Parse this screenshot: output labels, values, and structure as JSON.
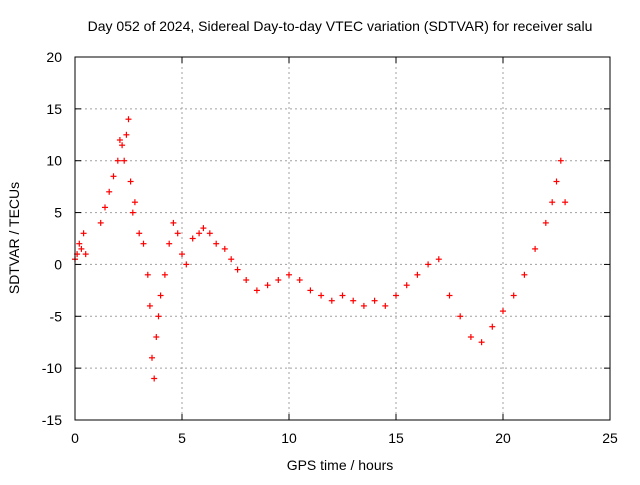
{
  "chart_data": {
    "type": "scatter",
    "title": "Day 052 of 2024, Sidereal Day-to-day VTEC variation (SDTVAR) for receiver salu",
    "xlabel": "GPS time / hours",
    "ylabel": "SDTVAR / TECUs",
    "xlim": [
      0,
      25
    ],
    "ylim": [
      -15,
      20
    ],
    "xticks": [
      0,
      5,
      10,
      15,
      20,
      25
    ],
    "yticks": [
      -15,
      -10,
      -5,
      0,
      5,
      10,
      15,
      20
    ],
    "grid": true,
    "marker": "+",
    "series_color": "#ff0000",
    "series": [
      {
        "name": "SDTVAR",
        "x": [
          0.0,
          0.1,
          0.2,
          0.3,
          0.4,
          0.5,
          1.2,
          1.4,
          1.6,
          1.8,
          2.0,
          2.1,
          2.2,
          2.3,
          2.4,
          2.5,
          2.6,
          2.7,
          2.8,
          3.0,
          3.2,
          3.4,
          3.5,
          3.6,
          3.7,
          3.8,
          3.9,
          4.0,
          4.2,
          4.4,
          4.6,
          4.8,
          5.0,
          5.2,
          5.5,
          5.8,
          6.0,
          6.3,
          6.6,
          7.0,
          7.3,
          7.6,
          8.0,
          8.5,
          9.0,
          9.5,
          10.0,
          10.5,
          11.0,
          11.5,
          12.0,
          12.5,
          13.0,
          13.5,
          14.0,
          14.5,
          15.0,
          15.5,
          16.0,
          16.5,
          17.0,
          17.5,
          18.0,
          18.5,
          19.0,
          19.5,
          20.0,
          20.5,
          21.0,
          21.5,
          22.0,
          22.3,
          22.5,
          22.7,
          22.9
        ],
        "y": [
          0.5,
          1.0,
          2.0,
          1.5,
          3.0,
          1.0,
          4.0,
          5.5,
          7.0,
          8.5,
          10.0,
          12.0,
          11.5,
          10.0,
          12.5,
          14.0,
          8.0,
          5.0,
          6.0,
          3.0,
          2.0,
          -1.0,
          -4.0,
          -9.0,
          -11.0,
          -7.0,
          -5.0,
          -3.0,
          -1.0,
          2.0,
          4.0,
          3.0,
          1.0,
          0.0,
          2.5,
          3.0,
          3.5,
          3.0,
          2.0,
          1.5,
          0.5,
          -0.5,
          -1.5,
          -2.5,
          -2.0,
          -1.5,
          -1.0,
          -1.5,
          -2.5,
          -3.0,
          -3.5,
          -3.0,
          -3.5,
          -4.0,
          -3.5,
          -4.0,
          -3.0,
          -2.0,
          -1.0,
          0.0,
          0.5,
          -3.0,
          -5.0,
          -7.0,
          -7.5,
          -6.0,
          -4.5,
          -3.0,
          -1.0,
          1.5,
          4.0,
          6.0,
          8.0,
          10.0,
          6.0
        ]
      }
    ]
  }
}
